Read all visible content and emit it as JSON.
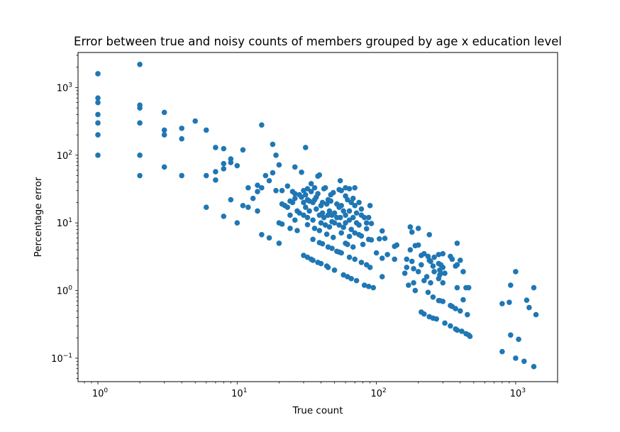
{
  "chart_data": {
    "type": "scatter",
    "title": "Error between true and noisy counts of members grouped by age x education level",
    "xlabel": "True count",
    "ylabel": "Percentage error",
    "xscale": "log",
    "yscale": "log",
    "xlim": [
      0.72,
      2000
    ],
    "ylim": [
      0.045,
      3300
    ],
    "grid": false,
    "legend": "none",
    "marker_color": "#1f77b4",
    "x_ticks": [
      {
        "base": "10",
        "exp": "0",
        "value": 1
      },
      {
        "base": "10",
        "exp": "1",
        "value": 10
      },
      {
        "base": "10",
        "exp": "2",
        "value": 100
      },
      {
        "base": "10",
        "exp": "3",
        "value": 1000
      }
    ],
    "y_ticks": [
      {
        "base": "10",
        "exp": "−1",
        "value": 0.1
      },
      {
        "base": "10",
        "exp": "0",
        "value": 1
      },
      {
        "base": "10",
        "exp": "1",
        "value": 10
      },
      {
        "base": "10",
        "exp": "2",
        "value": 100
      },
      {
        "base": "10",
        "exp": "3",
        "value": 1000
      }
    ],
    "points": [
      [
        1,
        1600
      ],
      [
        1,
        700
      ],
      [
        1,
        600
      ],
      [
        1,
        400
      ],
      [
        1,
        300
      ],
      [
        1,
        200
      ],
      [
        1,
        100
      ],
      [
        2,
        2200
      ],
      [
        2,
        550
      ],
      [
        2,
        500
      ],
      [
        2,
        300
      ],
      [
        2,
        100
      ],
      [
        2,
        50
      ],
      [
        3,
        430
      ],
      [
        3,
        235
      ],
      [
        3,
        200
      ],
      [
        3,
        67
      ],
      [
        4,
        250
      ],
      [
        4,
        175
      ],
      [
        4,
        50
      ],
      [
        5,
        320
      ],
      [
        6,
        235
      ],
      [
        6,
        50
      ],
      [
        6,
        17
      ],
      [
        7,
        130
      ],
      [
        7,
        57
      ],
      [
        7,
        43
      ],
      [
        8,
        125
      ],
      [
        8,
        75
      ],
      [
        8,
        63
      ],
      [
        8,
        12.5
      ],
      [
        9,
        88
      ],
      [
        9,
        78
      ],
      [
        9,
        22
      ],
      [
        10,
        70
      ],
      [
        10,
        10
      ],
      [
        11,
        120
      ],
      [
        11,
        18
      ],
      [
        12,
        33
      ],
      [
        12,
        17
      ],
      [
        13,
        23
      ],
      [
        14,
        36
      ],
      [
        14,
        29
      ],
      [
        14,
        15
      ],
      [
        15,
        280
      ],
      [
        15,
        33
      ],
      [
        15,
        6.7
      ],
      [
        16,
        50
      ],
      [
        17,
        42
      ],
      [
        17,
        6
      ],
      [
        18,
        145
      ],
      [
        18,
        55
      ],
      [
        19,
        100
      ],
      [
        19,
        30
      ],
      [
        20,
        72
      ],
      [
        20,
        10
      ],
      [
        20,
        5
      ],
      [
        21,
        30
      ],
      [
        21,
        19
      ],
      [
        21,
        9.6
      ],
      [
        22,
        18
      ],
      [
        23,
        35
      ],
      [
        23,
        17
      ],
      [
        24,
        21
      ],
      [
        24,
        13
      ],
      [
        24,
        8.3
      ],
      [
        25,
        29
      ],
      [
        25,
        20
      ],
      [
        26,
        67
      ],
      [
        26,
        27
      ],
      [
        26,
        23
      ],
      [
        26,
        11
      ],
      [
        27,
        15
      ],
      [
        27,
        7.7
      ],
      [
        28,
        26
      ],
      [
        28,
        14
      ],
      [
        29,
        56
      ],
      [
        29,
        24
      ],
      [
        30,
        30
      ],
      [
        30,
        20
      ],
      [
        30,
        13
      ],
      [
        30,
        3.3
      ],
      [
        31,
        130
      ],
      [
        31,
        26
      ],
      [
        31,
        17
      ],
      [
        32,
        32
      ],
      [
        32,
        22
      ],
      [
        32,
        12
      ],
      [
        32,
        9.4
      ],
      [
        32,
        3.1
      ],
      [
        33,
        21
      ],
      [
        33,
        15
      ],
      [
        34,
        38
      ],
      [
        34,
        29
      ],
      [
        34,
        2.9
      ],
      [
        35,
        20
      ],
      [
        35,
        11
      ],
      [
        35,
        5.7
      ],
      [
        35,
        2.8
      ],
      [
        36,
        33
      ],
      [
        36,
        22
      ],
      [
        36,
        8.3
      ],
      [
        37,
        24
      ],
      [
        37,
        16
      ],
      [
        38,
        49
      ],
      [
        38,
        27
      ],
      [
        38,
        2.6
      ],
      [
        39,
        51
      ],
      [
        39,
        13
      ],
      [
        39,
        7.7
      ],
      [
        39,
        5.1
      ],
      [
        40,
        18
      ],
      [
        40,
        10
      ],
      [
        40,
        2.5
      ],
      [
        41,
        20
      ],
      [
        41,
        14
      ],
      [
        41,
        4.9
      ],
      [
        42,
        32
      ],
      [
        42,
        12
      ],
      [
        43,
        33
      ],
      [
        43,
        9.3
      ],
      [
        44,
        19
      ],
      [
        44,
        6.8
      ],
      [
        44,
        2.3
      ],
      [
        45,
        22
      ],
      [
        45,
        13
      ],
      [
        45,
        4.4
      ],
      [
        45,
        2.2
      ],
      [
        46,
        15
      ],
      [
        46,
        8.7
      ],
      [
        47,
        26
      ],
      [
        47,
        21
      ],
      [
        48,
        13
      ],
      [
        48,
        10.4
      ],
      [
        48,
        4.2
      ],
      [
        49,
        28
      ],
      [
        49,
        6.1
      ],
      [
        50,
        14
      ],
      [
        50,
        10
      ],
      [
        50,
        2
      ],
      [
        52,
        19
      ],
      [
        52,
        12
      ],
      [
        52,
        3.8
      ],
      [
        54,
        31
      ],
      [
        54,
        17
      ],
      [
        54,
        9.3
      ],
      [
        54,
        3.7
      ],
      [
        55,
        42
      ],
      [
        55,
        12
      ],
      [
        56,
        30
      ],
      [
        56,
        18
      ],
      [
        56,
        7.1
      ],
      [
        56,
        3.6
      ],
      [
        58,
        15
      ],
      [
        58,
        8.6
      ],
      [
        58,
        1.7
      ],
      [
        60,
        33
      ],
      [
        60,
        25
      ],
      [
        60,
        13
      ],
      [
        60,
        10
      ],
      [
        60,
        5
      ],
      [
        62,
        22
      ],
      [
        62,
        4.8
      ],
      [
        62,
        1.6
      ],
      [
        64,
        32
      ],
      [
        64,
        15
      ],
      [
        64,
        11
      ],
      [
        64,
        6.3
      ],
      [
        64,
        3.1
      ],
      [
        66,
        20
      ],
      [
        66,
        8
      ],
      [
        66,
        1.5
      ],
      [
        68,
        23
      ],
      [
        68,
        12
      ],
      [
        68,
        4.4
      ],
      [
        70,
        33
      ],
      [
        70,
        18
      ],
      [
        70,
        7.1
      ],
      [
        70,
        2.9
      ],
      [
        72,
        14
      ],
      [
        72,
        10
      ],
      [
        72,
        1.4
      ],
      [
        75,
        20
      ],
      [
        75,
        9.3
      ],
      [
        75,
        6.7
      ],
      [
        78,
        16
      ],
      [
        78,
        13
      ],
      [
        78,
        6.4
      ],
      [
        78,
        2.6
      ],
      [
        80,
        4.8
      ],
      [
        82,
        12
      ],
      [
        82,
        1.2
      ],
      [
        85,
        10
      ],
      [
        85,
        8.2
      ],
      [
        85,
        2.4
      ],
      [
        88,
        12
      ],
      [
        88,
        5.7
      ],
      [
        88,
        1.15
      ],
      [
        90,
        18
      ],
      [
        90,
        2.2
      ],
      [
        92,
        9.8
      ],
      [
        92,
        5.6
      ],
      [
        95,
        1.1
      ],
      [
        100,
        3.6
      ],
      [
        110,
        7.6
      ],
      [
        110,
        3
      ],
      [
        110,
        1.6
      ],
      [
        105,
        5.8
      ],
      [
        115,
        5.9
      ],
      [
        120,
        3.4
      ],
      [
        135,
        4.5
      ],
      [
        135,
        2.9
      ],
      [
        140,
        4.7
      ],
      [
        160,
        1.8
      ],
      [
        165,
        2.9
      ],
      [
        165,
        2.2
      ],
      [
        170,
        1.2
      ],
      [
        175,
        8.7
      ],
      [
        175,
        4
      ],
      [
        180,
        7.3
      ],
      [
        180,
        2.7
      ],
      [
        185,
        2.1
      ],
      [
        185,
        1.3
      ],
      [
        190,
        4.6
      ],
      [
        190,
        1
      ],
      [
        200,
        8.3
      ],
      [
        200,
        4.7
      ],
      [
        200,
        1.9
      ],
      [
        210,
        3.3
      ],
      [
        210,
        2.4
      ],
      [
        210,
        0.48
      ],
      [
        220,
        3.5
      ],
      [
        220,
        1.4
      ],
      [
        220,
        0.45
      ],
      [
        230,
        1.6
      ],
      [
        235,
        3.2
      ],
      [
        235,
        0.94
      ],
      [
        240,
        6.7
      ],
      [
        240,
        2.8
      ],
      [
        240,
        0.41
      ],
      [
        245,
        2.7
      ],
      [
        245,
        1.3
      ],
      [
        255,
        2.3
      ],
      [
        255,
        0.8
      ],
      [
        255,
        0.39
      ],
      [
        260,
        3.1
      ],
      [
        260,
        1.9
      ],
      [
        270,
        0.38
      ],
      [
        280,
        3.4
      ],
      [
        280,
        2.5
      ],
      [
        280,
        1.5
      ],
      [
        280,
        0.71
      ],
      [
        285,
        2
      ],
      [
        285,
        1.7
      ],
      [
        285,
        0.71
      ],
      [
        290,
        2.4
      ],
      [
        290,
        1.8
      ],
      [
        300,
        3.5
      ],
      [
        300,
        2.2
      ],
      [
        300,
        1.3
      ],
      [
        300,
        0.69
      ],
      [
        310,
        1.8
      ],
      [
        310,
        0.33
      ],
      [
        340,
        3.2
      ],
      [
        340,
        0.6
      ],
      [
        340,
        0.3
      ],
      [
        350,
        2.9
      ],
      [
        350,
        0.58
      ],
      [
        370,
        2.3
      ],
      [
        370,
        0.54
      ],
      [
        370,
        0.27
      ],
      [
        380,
        5
      ],
      [
        380,
        2.4
      ],
      [
        380,
        1.1
      ],
      [
        380,
        0.26
      ],
      [
        400,
        2.8
      ],
      [
        400,
        0.5
      ],
      [
        410,
        0.25
      ],
      [
        420,
        1.9
      ],
      [
        420,
        0.73
      ],
      [
        440,
        1.1
      ],
      [
        440,
        0.23
      ],
      [
        450,
        0.44
      ],
      [
        460,
        1.1
      ],
      [
        460,
        0.22
      ],
      [
        470,
        0.21
      ],
      [
        800,
        0.64
      ],
      [
        800,
        0.125
      ],
      [
        900,
        0.67
      ],
      [
        920,
        1.2
      ],
      [
        920,
        0.22
      ],
      [
        1000,
        1.9
      ],
      [
        1000,
        0.1
      ],
      [
        1050,
        0.19
      ],
      [
        1150,
        0.09
      ],
      [
        1200,
        0.72
      ],
      [
        1250,
        0.56
      ],
      [
        1350,
        1.1
      ],
      [
        1350,
        0.075
      ],
      [
        1400,
        0.44
      ]
    ]
  }
}
